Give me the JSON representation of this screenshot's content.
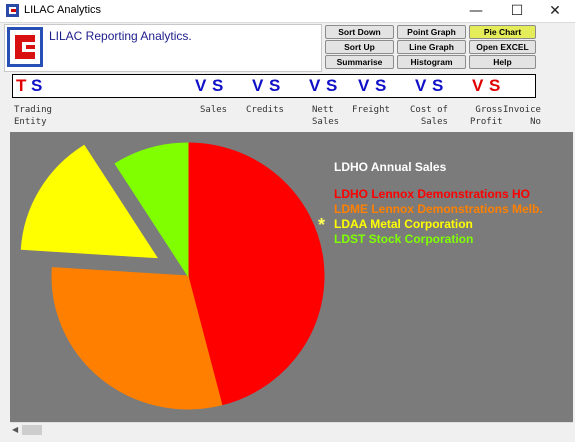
{
  "window": {
    "title": "LILAC Analytics",
    "minimize": "—",
    "maximize": "☐",
    "close": "✕"
  },
  "header": {
    "app_name": "LILAC Reporting Analytics."
  },
  "toolbar": {
    "sort_down": "Sort Down",
    "point_graph": "Point Graph",
    "pie_chart": "Pie Chart",
    "sort_up": "Sort Up",
    "line_graph": "Line Graph",
    "open_excel": "Open EXCEL",
    "summarise": "Summarise",
    "histogram": "Histogram",
    "help": "Help"
  },
  "column_bar": {
    "letters": [
      "T",
      "S",
      "V",
      "S",
      "V",
      "S",
      "V",
      "S",
      "V",
      "S",
      "V",
      "S",
      "V",
      "S"
    ],
    "colors": {
      "red": "#e00000",
      "blue": "#1010c8"
    }
  },
  "columns": {
    "trading_entity": "Trading\nEntity",
    "sales": "Sales",
    "credits": "Credits",
    "nett_sales": "Nett\nSales",
    "freight": "Freight",
    "cost_of_sales": "Cost of\nSales",
    "gross_profit": "Gross\nProfit",
    "invoice_no": "Invoice\nNo"
  },
  "chart_data": {
    "type": "pie",
    "title": "LDHO Annual Sales",
    "series": [
      {
        "name": "LDHO Lennox Demonstrations HO",
        "value": 46,
        "color": "#ff0000"
      },
      {
        "name": "LDME Lennox Demonstrations Melb.",
        "value": 30,
        "color": "#ff8000"
      },
      {
        "name": "LDAA Metal Corporation",
        "value": 15,
        "color": "#ffff00",
        "exploded": true
      },
      {
        "name": "LDST Stock Corporation",
        "value": 9,
        "color": "#80ff00"
      }
    ],
    "selected_marker": "*"
  }
}
